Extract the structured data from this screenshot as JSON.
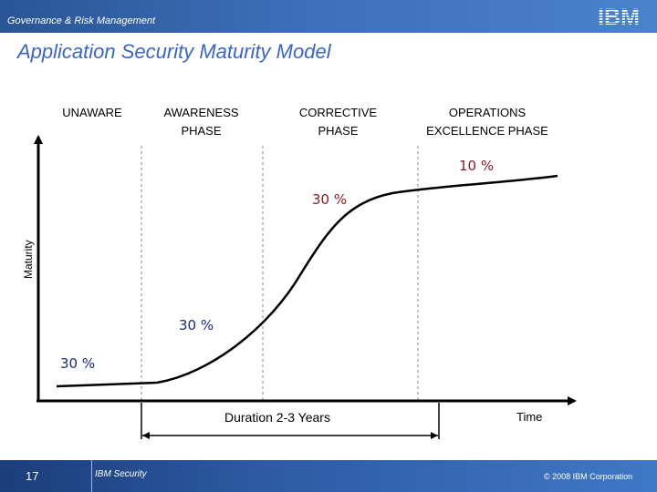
{
  "header": {
    "subtitle": "Governance & Risk Management",
    "logo_text": "IBM"
  },
  "slide": {
    "title": "Application Security Maturity Model"
  },
  "diagram": {
    "phases": [
      {
        "label": "UNAWARE"
      },
      {
        "label": "AWARENESS PHASE"
      },
      {
        "label": "CORRECTIVE PHASE"
      },
      {
        "label": "OPERATIONS EXCELLENCE PHASE"
      }
    ],
    "percentages": [
      "30 %",
      "30 %",
      "30 %",
      "10 %"
    ],
    "y_axis_label": "Maturity",
    "x_axis_label": "Time",
    "duration_label": "Duration 2-3 Years"
  },
  "footer": {
    "page_number": "17",
    "brand": "IBM Security",
    "copyright": "© 2008 IBM Corporation"
  },
  "colors": {
    "accent_title": "#3a66c9",
    "percent_blue": "#1a2a88",
    "percent_red": "#8c1b28"
  }
}
